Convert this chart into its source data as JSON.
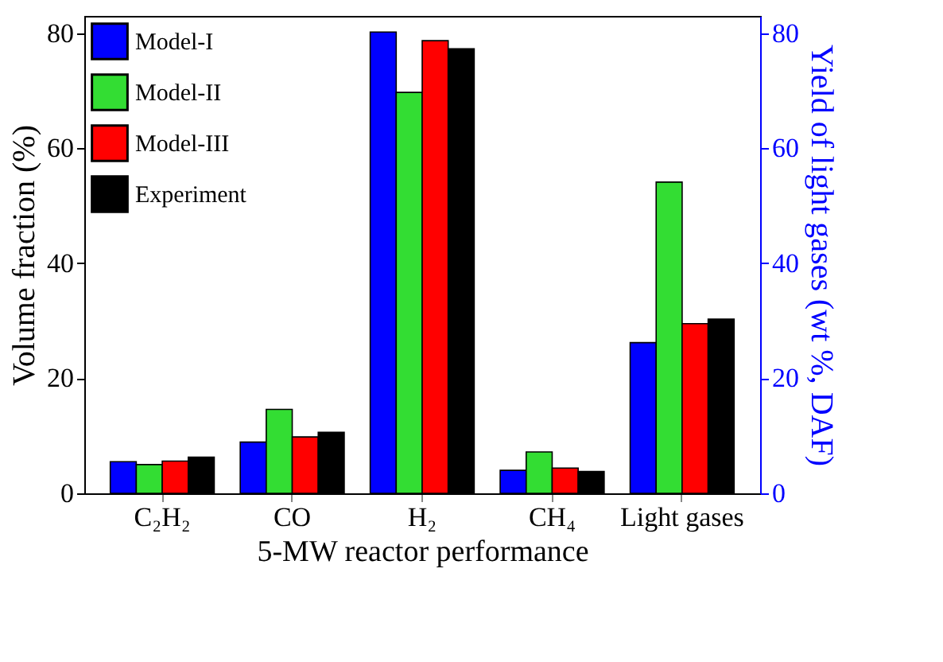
{
  "chart_data": {
    "type": "bar",
    "xlabel": "5-MW reactor performance",
    "ylabel": "Volume fraction (%)",
    "y2label": "Yield of light gases (wt %, DAF)",
    "categories": [
      "C₂H₂",
      "CO",
      "H₂",
      "CH₄",
      "Light gases"
    ],
    "series": [
      {
        "name": "Model-I",
        "color": "#0000ff",
        "values": [
          5.5,
          8.9,
          80.2,
          4.0,
          26.2
        ]
      },
      {
        "name": "Model-II",
        "color": "#33dd33",
        "values": [
          5.0,
          14.6,
          69.7,
          7.2,
          54.1
        ]
      },
      {
        "name": "Model-III",
        "color": "#ff0000",
        "values": [
          5.6,
          9.8,
          78.7,
          4.4,
          29.5
        ]
      },
      {
        "name": "Experiment",
        "color": "#000000",
        "values": [
          6.3,
          10.6,
          77.3,
          3.8,
          30.3
        ]
      }
    ],
    "ylim": [
      0,
      83
    ],
    "yticks": [
      0,
      20,
      40,
      60,
      80
    ],
    "y2lim": [
      0,
      83
    ],
    "y2ticks": [
      0,
      20,
      40,
      60,
      80
    ],
    "legend": "top left",
    "grid": false
  }
}
